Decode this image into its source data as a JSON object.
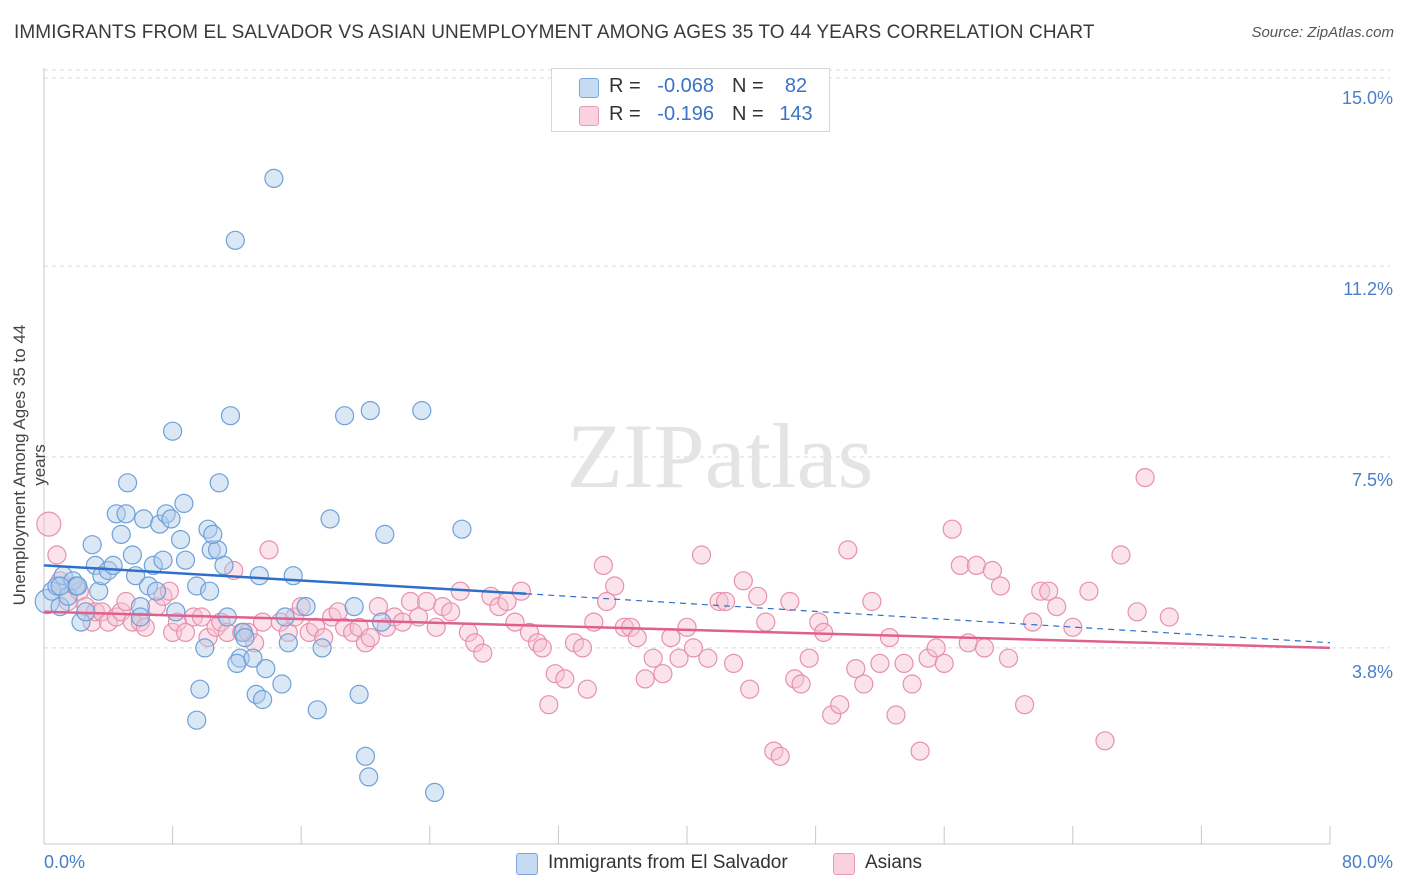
{
  "title": "IMMIGRANTS FROM EL SALVADOR VS ASIAN UNEMPLOYMENT AMONG AGES 35 TO 44 YEARS CORRELATION CHART",
  "source": "Source: ZipAtlas.com",
  "stats": {
    "r_label": "R =",
    "n_label": "N =",
    "rows": [
      {
        "r": "-0.068",
        "n": "82"
      },
      {
        "r": "-0.196",
        "n": "143"
      }
    ]
  },
  "colors": {
    "blue": "#6fa0d8",
    "blue_fill": "#aecbec",
    "blue_line": "#2f6fc9",
    "pink": "#e890ad",
    "pink_fill": "#f5c2d3",
    "pink_line": "#e0608c",
    "grid": "#d9d9d9",
    "axis_text": "#4a7fc8"
  },
  "chart_data": {
    "type": "scatter",
    "title": "IMMIGRANTS FROM EL SALVADOR VS ASIAN UNEMPLOYMENT AMONG AGES 35 TO 44 YEARS CORRELATION CHART",
    "xlabel": "",
    "ylabel": "Unemployment Among Ages 35 to 44 years",
    "xlim": [
      0,
      80
    ],
    "ylim": [
      0,
      15.5
    ],
    "x_tick_labels": [
      "0.0%",
      "80.0%"
    ],
    "y_ticks": [
      3.8,
      7.5,
      11.2,
      15.0
    ],
    "y_tick_labels": [
      "3.8%",
      "7.5%",
      "11.2%",
      "15.0%"
    ],
    "watermark": "ZIPatlas",
    "legend_position": "bottom-center",
    "series": [
      {
        "name": "Immigrants from El Salvador",
        "color": "blue",
        "r": -0.068,
        "n": 82,
        "trend": {
          "x": [
            0,
            30
          ],
          "y": [
            5.4,
            4.85
          ],
          "dashed_to": [
            80,
            3.9
          ]
        },
        "points": [
          [
            0.2,
            4.7
          ],
          [
            0.5,
            4.9
          ],
          [
            0.8,
            5.0
          ],
          [
            1.0,
            4.6
          ],
          [
            1.2,
            5.2
          ],
          [
            1.5,
            4.8
          ],
          [
            1.8,
            5.1
          ],
          [
            2.0,
            5.0
          ],
          [
            2.3,
            4.3
          ],
          [
            2.6,
            4.5
          ],
          [
            3.0,
            5.8
          ],
          [
            3.2,
            5.4
          ],
          [
            3.4,
            4.9
          ],
          [
            3.6,
            5.2
          ],
          [
            4.0,
            5.3
          ],
          [
            4.3,
            5.4
          ],
          [
            4.5,
            6.4
          ],
          [
            4.8,
            6.0
          ],
          [
            5.1,
            6.4
          ],
          [
            5.2,
            7.0
          ],
          [
            5.5,
            5.6
          ],
          [
            5.7,
            5.2
          ],
          [
            6.0,
            4.6
          ],
          [
            6.2,
            6.3
          ],
          [
            6.5,
            5.0
          ],
          [
            6.8,
            5.4
          ],
          [
            7.0,
            4.9
          ],
          [
            7.2,
            6.2
          ],
          [
            7.4,
            5.5
          ],
          [
            7.6,
            6.4
          ],
          [
            7.9,
            6.3
          ],
          [
            8.0,
            8.0
          ],
          [
            8.2,
            4.5
          ],
          [
            8.5,
            5.9
          ],
          [
            8.7,
            6.6
          ],
          [
            8.8,
            5.5
          ],
          [
            9.5,
            5.0
          ],
          [
            9.7,
            3.0
          ],
          [
            10.0,
            3.8
          ],
          [
            10.2,
            6.1
          ],
          [
            10.3,
            4.9
          ],
          [
            10.4,
            5.7
          ],
          [
            10.8,
            5.7
          ],
          [
            10.9,
            7.0
          ],
          [
            10.5,
            6.0
          ],
          [
            11.2,
            5.4
          ],
          [
            11.4,
            4.4
          ],
          [
            11.6,
            8.3
          ],
          [
            11.9,
            11.7
          ],
          [
            12.2,
            3.6
          ],
          [
            12.4,
            4.1
          ],
          [
            12.0,
            3.5
          ],
          [
            13.0,
            3.6
          ],
          [
            13.2,
            2.9
          ],
          [
            13.4,
            5.2
          ],
          [
            13.6,
            2.8
          ],
          [
            13.8,
            3.4
          ],
          [
            14.3,
            12.9
          ],
          [
            14.8,
            3.1
          ],
          [
            15.2,
            3.9
          ],
          [
            15.5,
            5.2
          ],
          [
            15.0,
            4.4
          ],
          [
            16.3,
            4.6
          ],
          [
            17.0,
            2.6
          ],
          [
            17.3,
            3.8
          ],
          [
            17.8,
            6.3
          ],
          [
            18.7,
            8.3
          ],
          [
            19.3,
            4.6
          ],
          [
            19.6,
            2.9
          ],
          [
            20.0,
            1.7
          ],
          [
            20.3,
            8.4
          ],
          [
            20.2,
            1.3
          ],
          [
            21.0,
            4.3
          ],
          [
            21.2,
            6.0
          ],
          [
            23.5,
            8.4
          ],
          [
            24.3,
            1.0
          ],
          [
            26.0,
            6.1
          ],
          [
            1.0,
            5.0
          ],
          [
            2.1,
            5.0
          ],
          [
            6.0,
            4.4
          ],
          [
            9.5,
            2.4
          ],
          [
            12.5,
            4.0
          ]
        ]
      },
      {
        "name": "Asians",
        "color": "pink",
        "r": -0.196,
        "n": 143,
        "trend": {
          "x": [
            0,
            80
          ],
          "y": [
            4.5,
            3.8
          ]
        },
        "points": [
          [
            0.3,
            6.2
          ],
          [
            0.8,
            5.6
          ],
          [
            1.0,
            5.1
          ],
          [
            1.5,
            4.7
          ],
          [
            2.0,
            5.0
          ],
          [
            2.2,
            4.9
          ],
          [
            2.6,
            4.6
          ],
          [
            3.0,
            4.3
          ],
          [
            3.2,
            4.5
          ],
          [
            3.6,
            4.5
          ],
          [
            4.0,
            4.3
          ],
          [
            4.5,
            4.4
          ],
          [
            4.8,
            4.5
          ],
          [
            5.1,
            4.7
          ],
          [
            5.5,
            4.3
          ],
          [
            6.0,
            4.3
          ],
          [
            6.3,
            4.2
          ],
          [
            7.0,
            4.6
          ],
          [
            7.4,
            4.8
          ],
          [
            7.8,
            4.9
          ],
          [
            8.0,
            4.1
          ],
          [
            8.3,
            4.3
          ],
          [
            8.8,
            4.1
          ],
          [
            9.3,
            4.4
          ],
          [
            9.8,
            4.4
          ],
          [
            10.2,
            4.0
          ],
          [
            10.7,
            4.2
          ],
          [
            11.0,
            4.3
          ],
          [
            11.4,
            4.1
          ],
          [
            11.8,
            5.3
          ],
          [
            12.3,
            4.1
          ],
          [
            12.7,
            4.1
          ],
          [
            13.1,
            3.9
          ],
          [
            13.6,
            4.3
          ],
          [
            14.0,
            5.7
          ],
          [
            14.7,
            4.3
          ],
          [
            15.2,
            4.1
          ],
          [
            15.6,
            4.4
          ],
          [
            16.0,
            4.6
          ],
          [
            16.5,
            4.1
          ],
          [
            16.9,
            4.2
          ],
          [
            17.4,
            4.0
          ],
          [
            17.9,
            4.4
          ],
          [
            18.3,
            4.5
          ],
          [
            18.7,
            4.2
          ],
          [
            19.2,
            4.1
          ],
          [
            19.6,
            4.2
          ],
          [
            20.0,
            3.9
          ],
          [
            20.3,
            4.0
          ],
          [
            20.8,
            4.6
          ],
          [
            21.3,
            4.2
          ],
          [
            21.8,
            4.4
          ],
          [
            22.3,
            4.3
          ],
          [
            22.8,
            4.7
          ],
          [
            23.3,
            4.4
          ],
          [
            23.8,
            4.7
          ],
          [
            24.4,
            4.2
          ],
          [
            24.8,
            4.6
          ],
          [
            25.3,
            4.5
          ],
          [
            25.9,
            4.9
          ],
          [
            26.4,
            4.1
          ],
          [
            26.8,
            3.9
          ],
          [
            27.3,
            3.7
          ],
          [
            27.8,
            4.8
          ],
          [
            28.3,
            4.6
          ],
          [
            28.8,
            4.7
          ],
          [
            29.3,
            4.3
          ],
          [
            29.7,
            4.9
          ],
          [
            30.2,
            4.1
          ],
          [
            30.7,
            3.9
          ],
          [
            31.0,
            3.8
          ],
          [
            31.4,
            2.7
          ],
          [
            31.8,
            3.3
          ],
          [
            32.4,
            3.2
          ],
          [
            33.0,
            3.9
          ],
          [
            33.5,
            3.8
          ],
          [
            33.8,
            3.0
          ],
          [
            34.2,
            4.3
          ],
          [
            34.8,
            5.4
          ],
          [
            35.0,
            4.7
          ],
          [
            35.5,
            5.0
          ],
          [
            36.1,
            4.2
          ],
          [
            36.5,
            4.2
          ],
          [
            36.9,
            4.0
          ],
          [
            37.4,
            3.2
          ],
          [
            37.9,
            3.6
          ],
          [
            38.5,
            3.3
          ],
          [
            39.0,
            4.0
          ],
          [
            39.5,
            3.6
          ],
          [
            40.0,
            4.2
          ],
          [
            40.4,
            3.8
          ],
          [
            40.9,
            5.6
          ],
          [
            41.3,
            3.6
          ],
          [
            42.0,
            4.7
          ],
          [
            42.4,
            4.7
          ],
          [
            42.9,
            3.5
          ],
          [
            43.5,
            5.1
          ],
          [
            43.9,
            3.0
          ],
          [
            44.4,
            4.8
          ],
          [
            44.9,
            4.3
          ],
          [
            45.4,
            1.8
          ],
          [
            45.8,
            1.7
          ],
          [
            46.4,
            4.7
          ],
          [
            46.7,
            3.2
          ],
          [
            47.1,
            3.1
          ],
          [
            47.6,
            3.6
          ],
          [
            48.2,
            4.3
          ],
          [
            48.5,
            4.1
          ],
          [
            49.0,
            2.5
          ],
          [
            49.5,
            2.7
          ],
          [
            50.0,
            5.7
          ],
          [
            50.5,
            3.4
          ],
          [
            51.0,
            3.1
          ],
          [
            51.5,
            4.7
          ],
          [
            52.0,
            3.5
          ],
          [
            52.6,
            4.0
          ],
          [
            53.0,
            2.5
          ],
          [
            53.5,
            3.5
          ],
          [
            54.0,
            3.1
          ],
          [
            54.5,
            1.8
          ],
          [
            55.0,
            3.6
          ],
          [
            55.5,
            3.8
          ],
          [
            56.0,
            3.5
          ],
          [
            56.5,
            6.1
          ],
          [
            57.0,
            5.4
          ],
          [
            57.5,
            3.9
          ],
          [
            58.0,
            5.4
          ],
          [
            58.5,
            3.8
          ],
          [
            59.0,
            5.3
          ],
          [
            59.5,
            5.0
          ],
          [
            60.0,
            3.6
          ],
          [
            61.0,
            2.7
          ],
          [
            61.5,
            4.3
          ],
          [
            62.0,
            4.9
          ],
          [
            62.5,
            4.9
          ],
          [
            63.0,
            4.6
          ],
          [
            64.0,
            4.2
          ],
          [
            65.0,
            4.9
          ],
          [
            66.0,
            2.0
          ],
          [
            67.0,
            5.6
          ],
          [
            68.0,
            4.5
          ],
          [
            68.5,
            7.1
          ],
          [
            70.0,
            4.4
          ]
        ]
      }
    ]
  }
}
